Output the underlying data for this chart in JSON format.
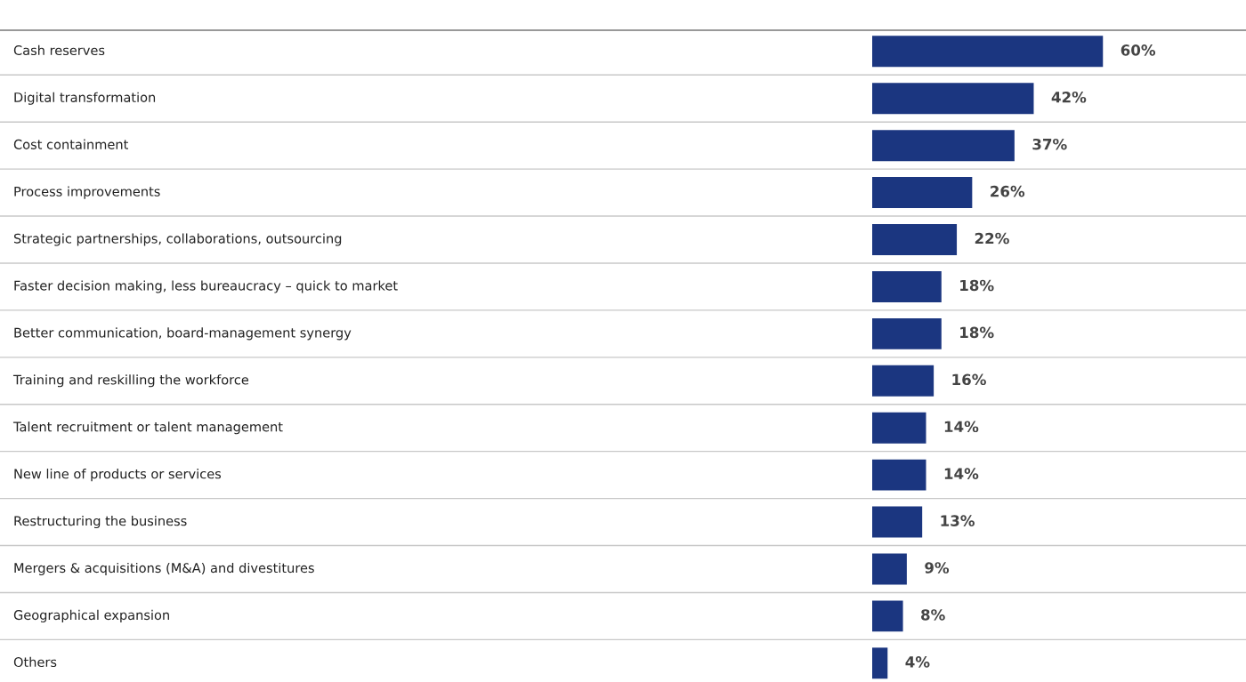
{
  "chart_data": {
    "type": "bar",
    "orientation": "horizontal",
    "categories": [
      "Cash reserves",
      "Digital transformation",
      "Cost containment",
      "Process improvements",
      "Strategic partnerships, collaborations, outsourcing",
      "Faster decision making, less bureaucracy – quick to market",
      "Better communication, board-management synergy",
      "Training and reskilling the workforce",
      "Talent recruitment or talent management",
      "New line of products or services",
      "Restructuring the business",
      "Mergers & acquisitions (M&A) and divestitures",
      "Geographical expansion",
      "Others"
    ],
    "values": [
      60,
      42,
      37,
      26,
      22,
      18,
      18,
      16,
      14,
      14,
      13,
      9,
      8,
      4
    ],
    "value_labels": [
      "60%",
      "42%",
      "37%",
      "26%",
      "22%",
      "18%",
      "18%",
      "16%",
      "14%",
      "14%",
      "13%",
      "9%",
      "8%",
      "4%"
    ],
    "color": "#1b3680",
    "grid": "y",
    "legend": false
  }
}
